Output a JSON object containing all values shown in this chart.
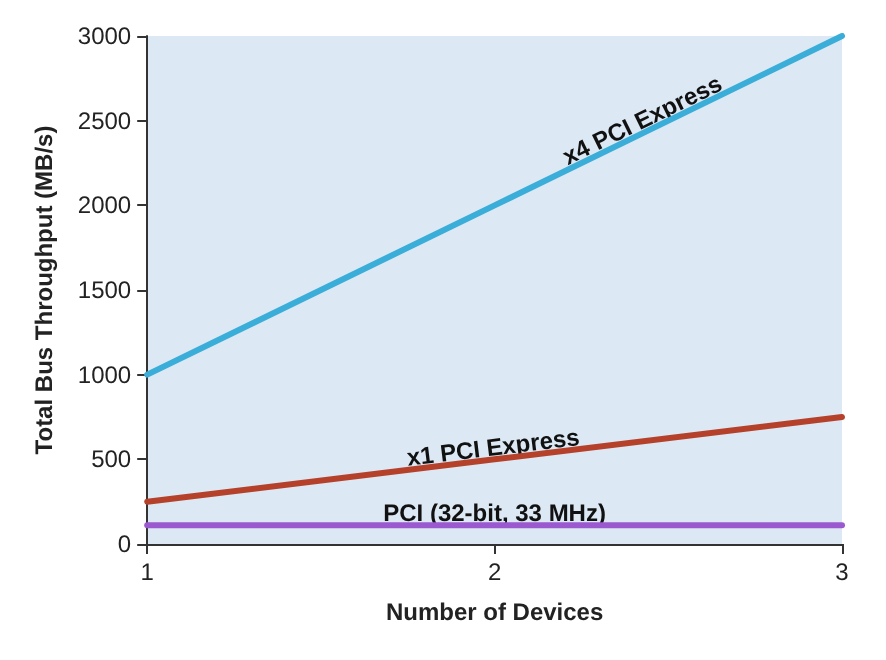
{
  "chart_data": {
    "type": "line",
    "xlabel": "Number of Devices",
    "ylabel": "Total Bus Throughput (MB/s)",
    "x": [
      1,
      2,
      3
    ],
    "xlim": [
      1,
      3
    ],
    "xticks": [
      1,
      2,
      3
    ],
    "ylim": [
      0,
      3000
    ],
    "yticks": [
      0,
      500,
      1000,
      1500,
      2000,
      2500,
      3000
    ],
    "grid": false,
    "legend": false,
    "marker": "none",
    "line_style": "solid",
    "series": [
      {
        "name": "x4 PCI Express",
        "color": "#3aaed8",
        "values": [
          1000,
          2000,
          3000
        ]
      },
      {
        "name": "x1 PCI Express",
        "color": "#b5412a",
        "values": [
          250,
          500,
          750
        ]
      },
      {
        "name": "PCI (32-bit, 33 MHz)",
        "color": "#9b59d0",
        "values": [
          110,
          110,
          110
        ]
      }
    ]
  }
}
